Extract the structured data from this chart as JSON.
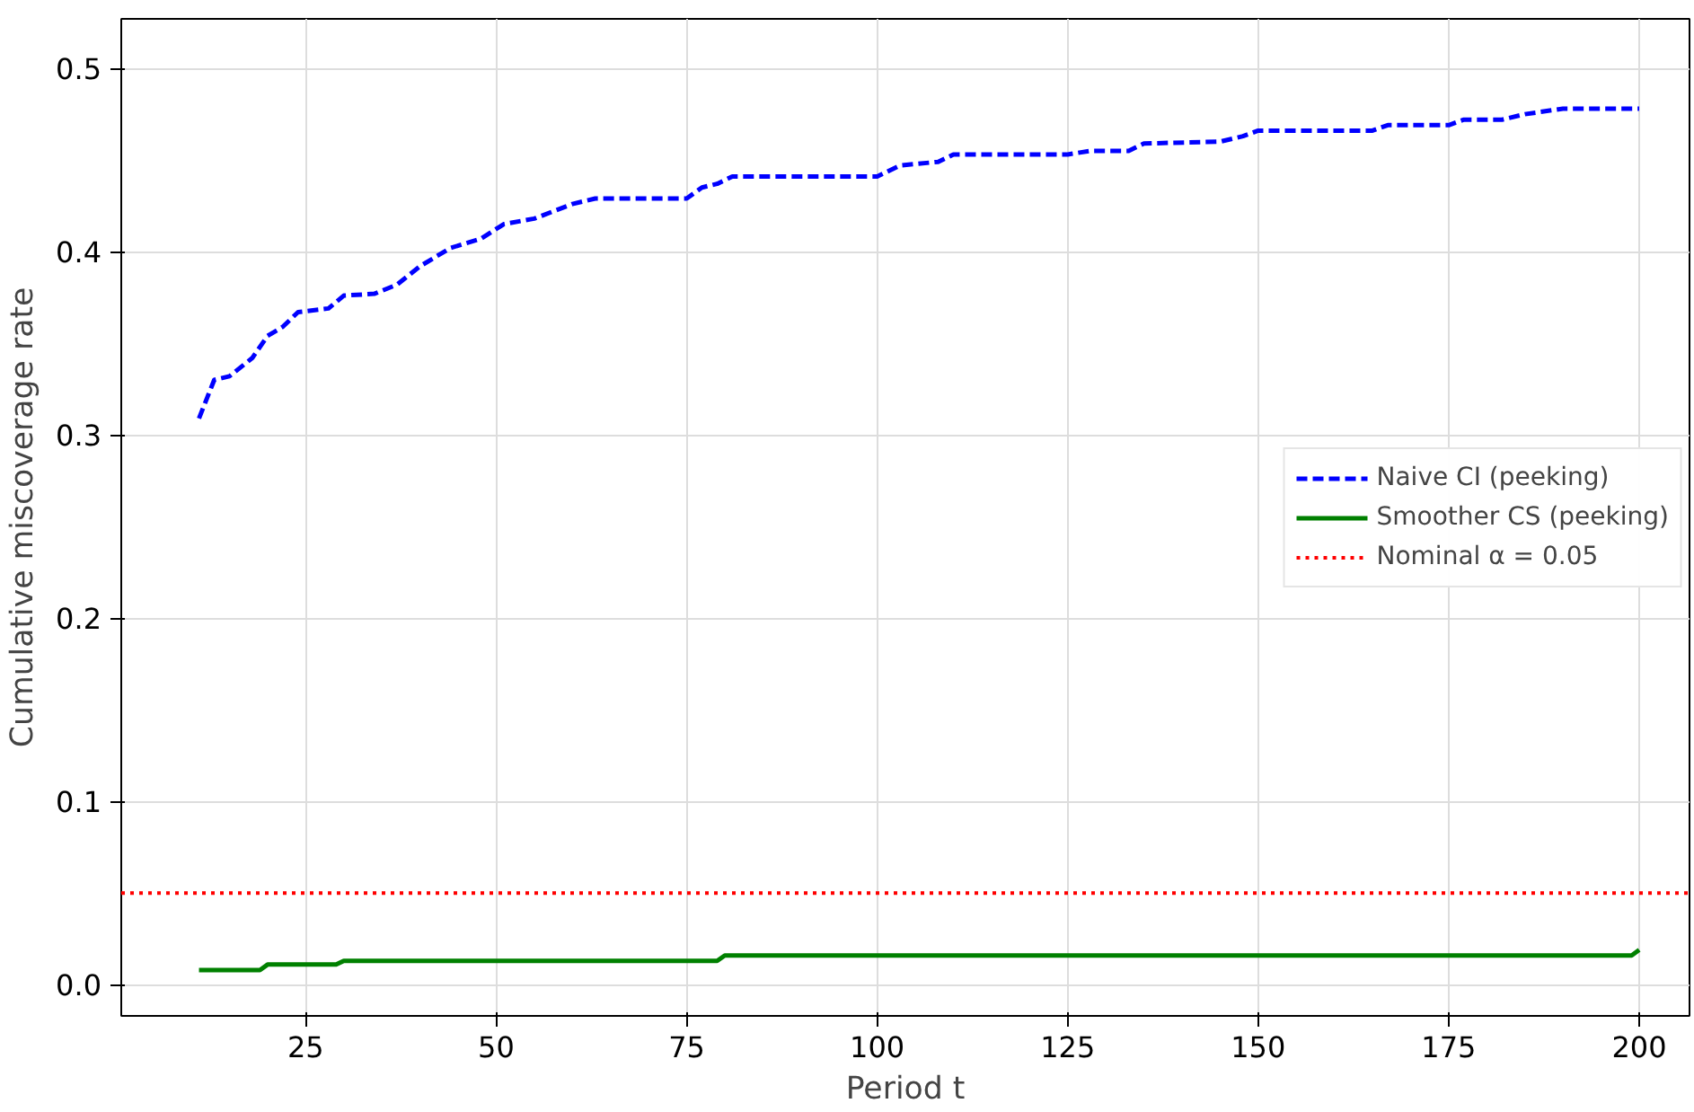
{
  "chart_data": {
    "type": "line",
    "xlabel": "Period t",
    "ylabel": "Cumulative miscoverage rate",
    "xlim": [
      0.8,
      206.6
    ],
    "ylim": [
      -0.017,
      0.527
    ],
    "xticks": [
      25,
      50,
      75,
      100,
      125,
      150,
      175,
      200
    ],
    "yticks": [
      {
        "value": 0,
        "label": "0.0"
      },
      0.1,
      0.2,
      0.3,
      0.4,
      0.5
    ],
    "grid": true,
    "legend": "right",
    "marker": "none",
    "series": [
      {
        "name": "Naive CI (peeking)",
        "color": "#0000ff",
        "line_style": "dashed",
        "x": [
          11,
          13,
          15,
          18,
          20,
          22,
          24,
          28,
          30,
          34,
          37,
          40,
          44,
          48,
          51,
          55,
          60,
          63,
          75,
          77,
          79,
          81,
          100,
          103,
          108,
          110,
          125,
          128,
          133,
          135,
          145,
          148,
          150,
          165,
          167,
          175,
          177,
          182,
          185,
          190,
          200
        ],
        "values": [
          0.309,
          0.33,
          0.332,
          0.342,
          0.354,
          0.359,
          0.367,
          0.369,
          0.376,
          0.377,
          0.382,
          0.392,
          0.402,
          0.407,
          0.415,
          0.418,
          0.426,
          0.429,
          0.429,
          0.435,
          0.437,
          0.441,
          0.441,
          0.447,
          0.449,
          0.453,
          0.453,
          0.455,
          0.455,
          0.459,
          0.46,
          0.463,
          0.466,
          0.466,
          0.469,
          0.469,
          0.472,
          0.472,
          0.475,
          0.478,
          0.478
        ]
      },
      {
        "name": "Smoother CS (peeking)",
        "color": "#008000",
        "line_style": "solid",
        "x": [
          11,
          19,
          20,
          29,
          30,
          79,
          80,
          199,
          200
        ],
        "values": [
          0.008,
          0.008,
          0.011,
          0.011,
          0.013,
          0.013,
          0.016,
          0.016,
          0.019
        ]
      }
    ],
    "ref_lines": [
      {
        "axis": "y",
        "value": 0.05,
        "label": "Nominal α = 0.05",
        "color": "#ff0000",
        "line_style": "dotted"
      }
    ]
  }
}
